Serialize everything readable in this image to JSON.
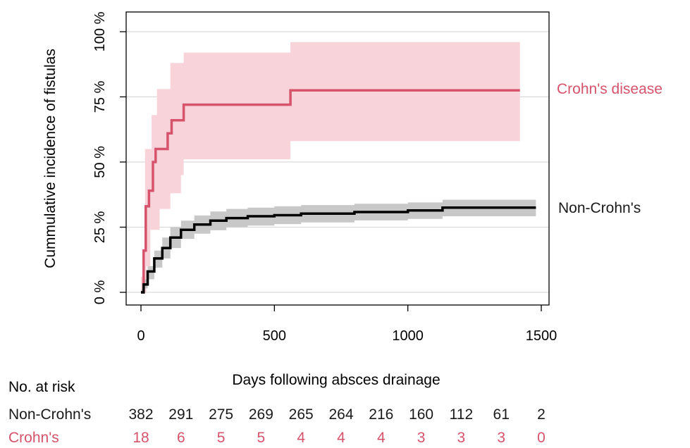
{
  "chart_data": {
    "type": "line",
    "subtype": "step",
    "xlabel": "Days following absces drainage",
    "ylabel": "Cummulative incidence of fistulas",
    "xlim": [
      0,
      1500
    ],
    "ylim": [
      0,
      100
    ],
    "x_ticks": [
      "0",
      "500",
      "1000",
      "1500"
    ],
    "y_ticks": [
      "0 %",
      "25 %",
      "50 %",
      "75 %",
      "100 %"
    ],
    "grid": "horizontal",
    "series": [
      {
        "name": "Crohn's disease",
        "color": "#d6536b",
        "band_color": "#f8d3da",
        "points": [
          [
            0,
            0
          ],
          [
            10,
            16
          ],
          [
            18,
            33
          ],
          [
            30,
            39
          ],
          [
            45,
            50
          ],
          [
            55,
            55
          ],
          [
            100,
            61
          ],
          [
            115,
            66
          ],
          [
            160,
            72
          ],
          [
            560,
            72
          ],
          [
            560,
            77.5
          ],
          [
            1420,
            77.5
          ]
        ],
        "ci_upper": [
          [
            0,
            6
          ],
          [
            15,
            55
          ],
          [
            40,
            68
          ],
          [
            60,
            78
          ],
          [
            110,
            88
          ],
          [
            160,
            92
          ],
          [
            560,
            92
          ],
          [
            560,
            96
          ],
          [
            1420,
            96
          ]
        ],
        "ci_lower": [
          [
            0,
            0
          ],
          [
            20,
            10
          ],
          [
            35,
            24
          ],
          [
            70,
            32
          ],
          [
            110,
            38
          ],
          [
            150,
            45
          ],
          [
            160,
            51
          ],
          [
            560,
            51
          ],
          [
            560,
            58
          ],
          [
            1420,
            58
          ]
        ]
      },
      {
        "name": "Non-Crohn's",
        "color": "#000000",
        "band_color": "#c8c8c8",
        "points": [
          [
            0,
            0
          ],
          [
            10,
            3
          ],
          [
            25,
            8
          ],
          [
            50,
            13
          ],
          [
            80,
            17
          ],
          [
            110,
            21
          ],
          [
            150,
            24
          ],
          [
            200,
            26
          ],
          [
            260,
            27.5
          ],
          [
            320,
            28.5
          ],
          [
            400,
            29.2
          ],
          [
            500,
            29.6
          ],
          [
            600,
            30.2
          ],
          [
            800,
            30.8
          ],
          [
            1000,
            31.4
          ],
          [
            1130,
            31.8
          ],
          [
            1130,
            32.5
          ],
          [
            1480,
            32.5
          ]
        ],
        "ci_upper": [
          [
            0,
            1
          ],
          [
            10,
            5
          ],
          [
            25,
            10
          ],
          [
            50,
            16
          ],
          [
            80,
            21
          ],
          [
            110,
            25
          ],
          [
            150,
            27.5
          ],
          [
            200,
            29.5
          ],
          [
            260,
            31
          ],
          [
            320,
            32
          ],
          [
            400,
            32.5
          ],
          [
            500,
            33
          ],
          [
            600,
            33.5
          ],
          [
            800,
            34
          ],
          [
            1000,
            34.5
          ],
          [
            1130,
            35
          ],
          [
            1130,
            35.5
          ],
          [
            1480,
            35.5
          ]
        ],
        "ci_lower": [
          [
            0,
            0
          ],
          [
            10,
            1.5
          ],
          [
            25,
            5
          ],
          [
            50,
            9.5
          ],
          [
            80,
            13
          ],
          [
            110,
            17
          ],
          [
            150,
            20.5
          ],
          [
            200,
            22.5
          ],
          [
            260,
            23.8
          ],
          [
            320,
            25
          ],
          [
            400,
            25.6
          ],
          [
            500,
            26.2
          ],
          [
            600,
            26.8
          ],
          [
            800,
            27.6
          ],
          [
            1000,
            28.2
          ],
          [
            1130,
            28.5
          ],
          [
            1130,
            29.2
          ],
          [
            1480,
            29.2
          ]
        ]
      }
    ],
    "risk_table": {
      "header": "No. at risk",
      "times": [
        0,
        150,
        300,
        450,
        600,
        750,
        900,
        1050,
        1200,
        1350,
        1500
      ],
      "rows": [
        {
          "label": "Non-Crohn's",
          "color": "#1a1a1a",
          "values": [
            "382",
            "291",
            "275",
            "269",
            "265",
            "264",
            "216",
            "160",
            "112",
            "61",
            "2"
          ]
        },
        {
          "label": "Crohn's",
          "color": "#d6536b",
          "values": [
            "18",
            "6",
            "5",
            "5",
            "4",
            "4",
            "4",
            "3",
            "3",
            "3",
            "0"
          ]
        }
      ]
    }
  }
}
